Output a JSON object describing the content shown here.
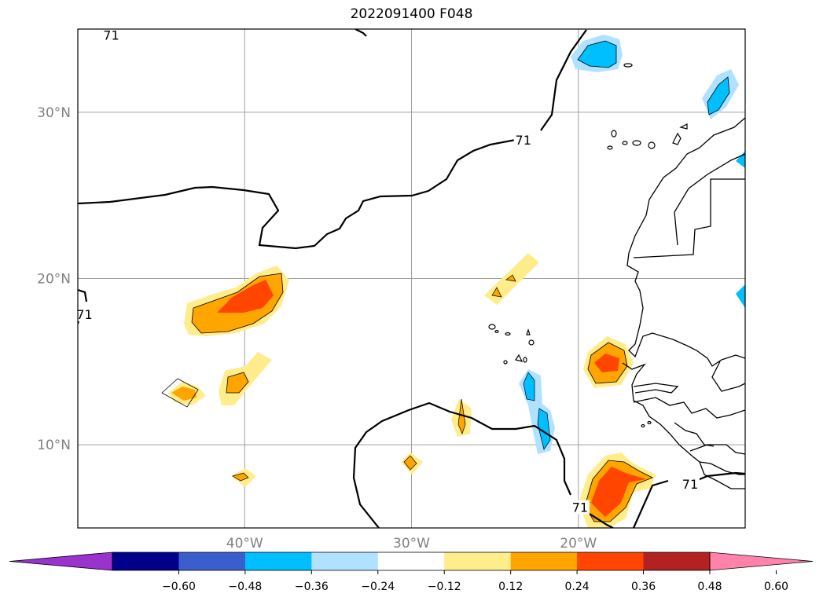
{
  "title": "2022091400 F048",
  "map": {
    "extent": {
      "lon": [
        -50,
        -10
      ],
      "lat": [
        5,
        35
      ]
    },
    "lat_ticks": [
      {
        "value": 30,
        "label": "30°N"
      },
      {
        "value": 20,
        "label": "20°N"
      },
      {
        "value": 10,
        "label": "10°N"
      }
    ],
    "lon_ticks": [
      {
        "value": -40,
        "label": "40°W"
      },
      {
        "value": -30,
        "label": "30°W"
      },
      {
        "value": -20,
        "label": "20°W"
      }
    ],
    "contour_labels": [
      {
        "text": "71",
        "lon": -48.0,
        "lat": 34.6
      },
      {
        "text": "71",
        "lon": -23.3,
        "lat": 28.3
      },
      {
        "text": "71",
        "lon": -49.6,
        "lat": 17.8
      },
      {
        "text": "71",
        "lon": -13.3,
        "lat": 7.6
      },
      {
        "text": "71",
        "lon": -19.9,
        "lat": 6.2
      }
    ],
    "grid": true
  },
  "colorbar": {
    "levels": [
      "−0.60",
      "−0.48",
      "−0.36",
      "−0.24",
      "−0.12",
      "0.12",
      "0.24",
      "0.36",
      "0.48",
      "0.60"
    ],
    "colors": [
      "#9a32cd",
      "#00008b",
      "#3a5fcd",
      "#00bfff",
      "#b0e2ff",
      "#ffffff",
      "#ffec8b",
      "#ffa500",
      "#ff4500",
      "#b22222",
      "#ff82ab"
    ],
    "extend": "both"
  }
}
